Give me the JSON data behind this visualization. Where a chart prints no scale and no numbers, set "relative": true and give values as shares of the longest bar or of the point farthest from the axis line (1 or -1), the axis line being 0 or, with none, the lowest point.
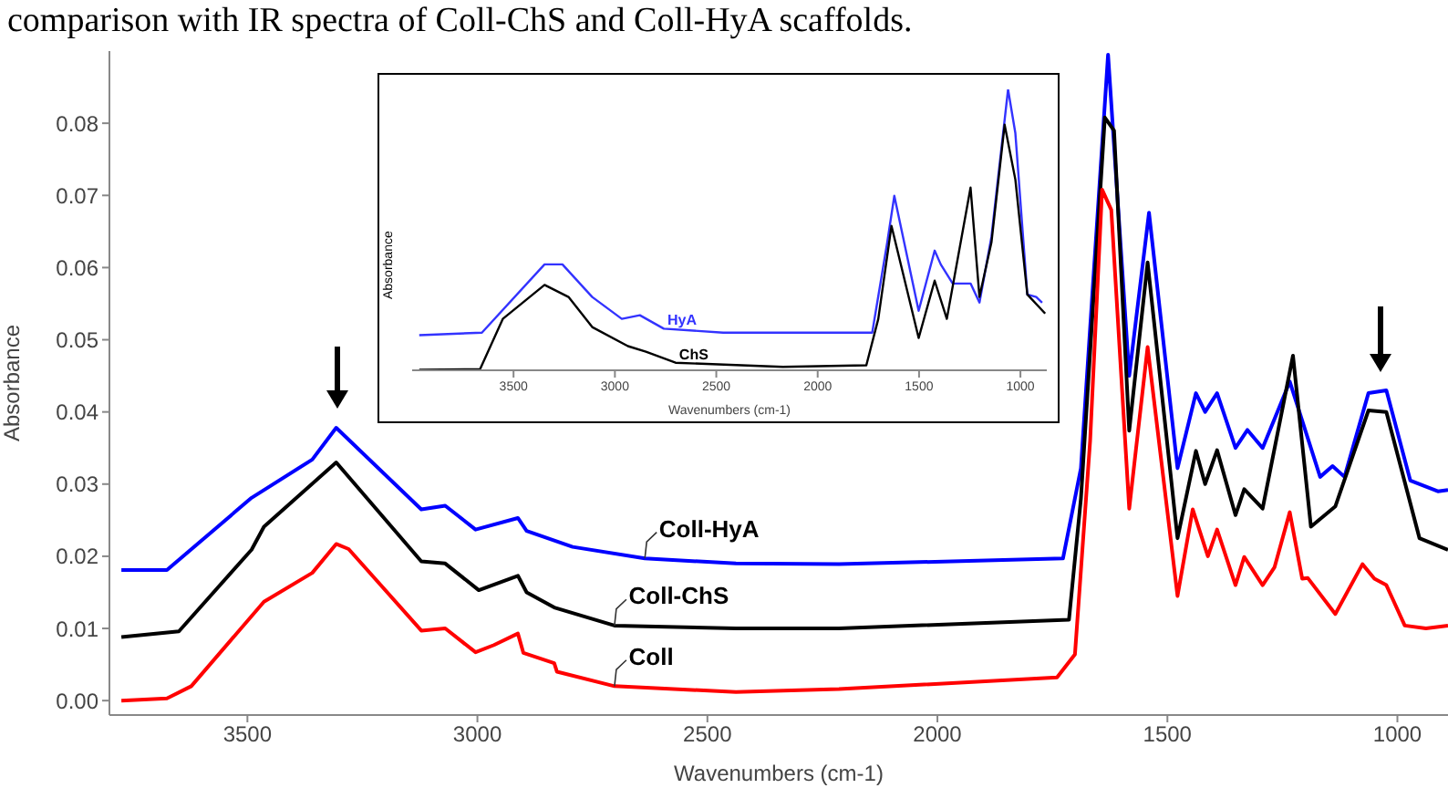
{
  "chart_data": [
    {
      "type": "line",
      "title": "comparison with IR spectra of Coll-ChS and Coll-HyA scaffolds.",
      "xlabel": "Wavenumbers (cm-1)",
      "ylabel": "Absorbance",
      "xlim": [
        3800,
        890
      ],
      "ylim": [
        -0.002,
        0.09
      ],
      "xticks": [
        3500,
        3000,
        2500,
        2000,
        1500,
        1000
      ],
      "yticks": [
        {
          "value": 0,
          "label": "0.00"
        },
        {
          "value": 0.01,
          "label": "0.01"
        },
        {
          "value": 0.02,
          "label": "0.02"
        },
        {
          "value": 0.03,
          "label": "0.03"
        },
        {
          "value": 0.04,
          "label": "0.04"
        },
        {
          "value": 0.05,
          "label": "0.05"
        },
        {
          "value": 0.06,
          "label": "0.06"
        },
        {
          "value": 0.07,
          "label": "0.07"
        },
        {
          "value": 0.08,
          "label": "0.08"
        }
      ],
      "grid": false,
      "legend": false,
      "marker": "none",
      "line_style": "solid",
      "series": [
        {
          "name": "Coll-HyA",
          "color": "#0000ff",
          "x": [
            3774,
            3675,
            3491,
            3359,
            3307,
            3122,
            3070,
            3004,
            2912,
            2893,
            2793,
            2636,
            2438,
            2214,
            1727,
            1688,
            1629,
            1583,
            1540,
            1478,
            1438,
            1418,
            1392,
            1352,
            1326,
            1293,
            1234,
            1168,
            1141,
            1115,
            1063,
            1024,
            972,
            912,
            890
          ],
          "values": [
            0.0181,
            0.0181,
            0.0281,
            0.0334,
            0.0378,
            0.0265,
            0.027,
            0.0237,
            0.0253,
            0.0235,
            0.0213,
            0.0197,
            0.019,
            0.0189,
            0.0197,
            0.0322,
            0.0895,
            0.045,
            0.0676,
            0.0322,
            0.0426,
            0.04,
            0.0426,
            0.035,
            0.0375,
            0.035,
            0.0442,
            0.031,
            0.0325,
            0.031,
            0.0426,
            0.043,
            0.0305,
            0.029,
            0.0292
          ]
        },
        {
          "name": "Coll-ChS",
          "color": "#000000",
          "x": [
            3774,
            3649,
            3491,
            3464,
            3307,
            3122,
            3070,
            2997,
            2912,
            2893,
            2833,
            2702,
            2438,
            2214,
            1714,
            1688,
            1636,
            1616,
            1583,
            1543,
            1478,
            1438,
            1418,
            1392,
            1352,
            1333,
            1293,
            1227,
            1188,
            1135,
            1063,
            1024,
            952,
            890
          ],
          "values": [
            0.0088,
            0.0096,
            0.0209,
            0.0241,
            0.033,
            0.0193,
            0.019,
            0.0153,
            0.0173,
            0.015,
            0.0129,
            0.0104,
            0.01,
            0.01,
            0.0112,
            0.028,
            0.0808,
            0.079,
            0.0374,
            0.0607,
            0.0225,
            0.0346,
            0.03,
            0.0347,
            0.0257,
            0.0293,
            0.0266,
            0.0478,
            0.0241,
            0.0269,
            0.0402,
            0.04,
            0.0225,
            0.0209
          ]
        },
        {
          "name": "Coll",
          "color": "#ff0000",
          "x": [
            3774,
            3675,
            3622,
            3464,
            3359,
            3307,
            3280,
            3122,
            3070,
            3004,
            2964,
            2912,
            2900,
            2833,
            2827,
            2702,
            2438,
            2214,
            1740,
            1701,
            1668,
            1642,
            1622,
            1583,
            1543,
            1478,
            1445,
            1412,
            1392,
            1352,
            1333,
            1293,
            1267,
            1234,
            1207,
            1195,
            1135,
            1076,
            1050,
            1024,
            984,
            938,
            890
          ],
          "values": [
            0,
            0.0003,
            0.002,
            0.0137,
            0.0177,
            0.0217,
            0.021,
            0.0097,
            0.01,
            0.0067,
            0.0077,
            0.0093,
            0.0066,
            0.0052,
            0.004,
            0.002,
            0.0012,
            0.0016,
            0.0032,
            0.0064,
            0.036,
            0.0708,
            0.068,
            0.0266,
            0.049,
            0.0145,
            0.0265,
            0.02,
            0.0237,
            0.016,
            0.0199,
            0.016,
            0.0185,
            0.0261,
            0.0169,
            0.017,
            0.012,
            0.0189,
            0.0169,
            0.016,
            0.0104,
            0.01,
            0.0104
          ]
        }
      ]
    },
    {
      "type": "line",
      "xlabel": "Wavenumbers (cm-1)",
      "ylabel": "Absorbance",
      "xlim": [
        4000,
        870
      ],
      "xticks": [
        3500,
        3000,
        2500,
        2000,
        1500,
        1000
      ],
      "relative": true,
      "tick_labels": "x",
      "grid": false,
      "legend": false,
      "marker": "none",
      "line_style": "solid",
      "series": [
        {
          "name": "HyA",
          "color": "#3333ff",
          "x": [
            3965,
            3656,
            3347,
            3259,
            3112,
            2966,
            2877,
            2759,
            2466,
            1731,
            1657,
            1622,
            1502,
            1423,
            1393,
            1334,
            1246,
            1202,
            1143,
            1061,
            1025,
            966,
            922,
            893
          ],
          "values": [
            0.125,
            0.134,
            0.377,
            0.377,
            0.261,
            0.183,
            0.196,
            0.148,
            0.134,
            0.134,
            0.455,
            0.621,
            0.212,
            0.426,
            0.377,
            0.309,
            0.309,
            0.241,
            0.475,
            1,
            0.844,
            0.27,
            0.261,
            0.241
          ]
        },
        {
          "name": "ChS",
          "color": "#000000",
          "x": [
            3965,
            3665,
            3553,
            3347,
            3229,
            3112,
            2936,
            2847,
            2701,
            2172,
            1760,
            1701,
            1636,
            1502,
            1423,
            1363,
            1246,
            1202,
            1143,
            1078,
            1025,
            966,
            878
          ],
          "values": [
            0.002,
            0.004,
            0.183,
            0.304,
            0.261,
            0.154,
            0.086,
            0.066,
            0.027,
            0.012,
            0.018,
            0.183,
            0.514,
            0.115,
            0.319,
            0.183,
            0.65,
            0.261,
            0.455,
            0.874,
            0.679,
            0.27,
            0.202
          ]
        }
      ]
    }
  ]
}
